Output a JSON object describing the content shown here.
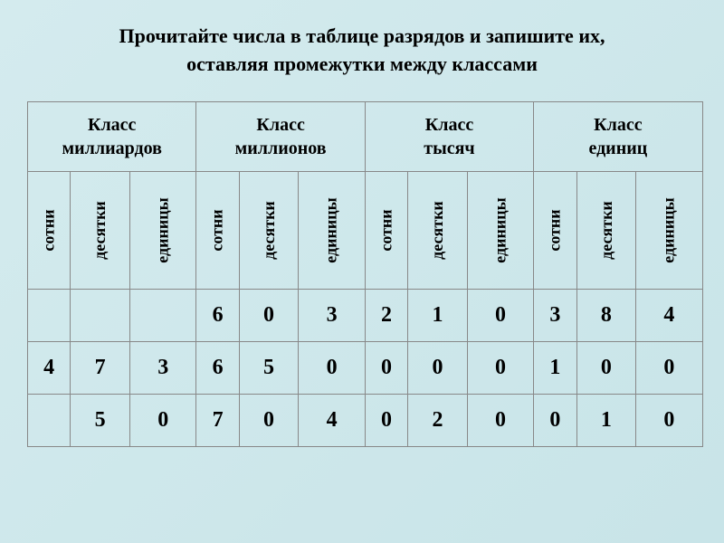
{
  "title_line1": "Прочитайте числа в таблице разрядов и запишите их,",
  "title_line2": "оставляя промежутки между классами",
  "classes": [
    {
      "name_line1": "Класс",
      "name_line2": "миллиардов"
    },
    {
      "name_line1": "Класс",
      "name_line2": "миллионов"
    },
    {
      "name_line1": "Класс",
      "name_line2": "тысяч"
    },
    {
      "name_line1": "Класс",
      "name_line2": "единиц"
    }
  ],
  "ranks": [
    "сотни",
    "десятки",
    "единицы",
    "сотни",
    "десятки",
    "единицы",
    "сотни",
    "десятки",
    "единицы",
    "сотни",
    "десятки",
    "единицы"
  ],
  "rows": [
    [
      "",
      "",
      "",
      "6",
      "0",
      "3",
      "2",
      "1",
      "0",
      "3",
      "8",
      "4"
    ],
    [
      "4",
      "7",
      "3",
      "6",
      "5",
      "0",
      "0",
      "0",
      "0",
      "1",
      "0",
      "0"
    ],
    [
      "",
      "5",
      "0",
      "7",
      "0",
      "4",
      "0",
      "2",
      "0",
      "0",
      "1",
      "0"
    ]
  ]
}
